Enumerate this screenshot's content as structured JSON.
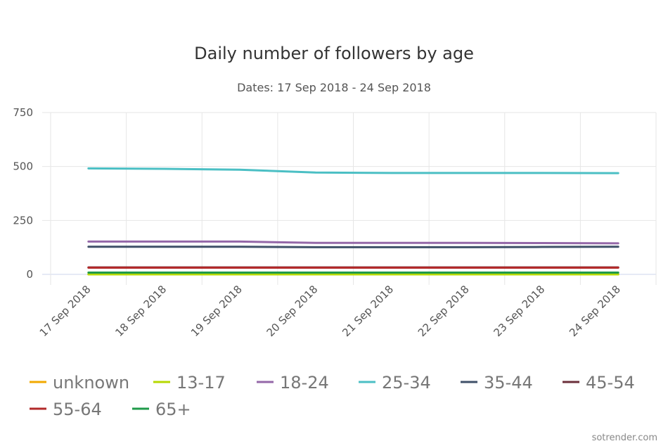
{
  "chart_data": {
    "type": "line",
    "title": "Daily number of followers by age",
    "subtitle": "Dates: 17 Sep 2018 - 24 Sep 2018",
    "xlabel": "",
    "ylabel": "",
    "categories": [
      "17 Sep 2018",
      "18 Sep 2018",
      "19 Sep 2018",
      "20 Sep 2018",
      "21 Sep 2018",
      "22 Sep 2018",
      "23 Sep 2018",
      "24 Sep 2018"
    ],
    "ylim": [
      0,
      750
    ],
    "yticks": [
      "0",
      "250",
      "500",
      "750"
    ],
    "grid": true,
    "legend_position": "bottom",
    "series": [
      {
        "name": "unknown",
        "color": "#f2a900",
        "values": [
          0,
          0,
          0,
          0,
          0,
          0,
          0,
          0
        ]
      },
      {
        "name": "13-17",
        "color": "#b6d800",
        "values": [
          0,
          0,
          0,
          0,
          0,
          0,
          0,
          0
        ]
      },
      {
        "name": "18-24",
        "color": "#9467a8",
        "values": [
          152,
          152,
          152,
          146,
          146,
          146,
          145,
          144
        ]
      },
      {
        "name": "25-34",
        "color": "#4bbfc4",
        "values": [
          491,
          489,
          485,
          472,
          470,
          470,
          470,
          469
        ]
      },
      {
        "name": "35-44",
        "color": "#3f5068",
        "values": [
          128,
          128,
          128,
          126,
          126,
          126,
          127,
          128
        ]
      },
      {
        "name": "45-54",
        "color": "#6b2f3a",
        "values": [
          32,
          32,
          32,
          32,
          32,
          32,
          32,
          32
        ]
      },
      {
        "name": "55-64",
        "color": "#b22a2a",
        "values": [
          31,
          31,
          31,
          31,
          31,
          31,
          31,
          31
        ]
      },
      {
        "name": "65+",
        "color": "#1f9a4a",
        "values": [
          8,
          8,
          8,
          8,
          8,
          8,
          8,
          8
        ]
      }
    ]
  },
  "credit": "sotrender.com"
}
